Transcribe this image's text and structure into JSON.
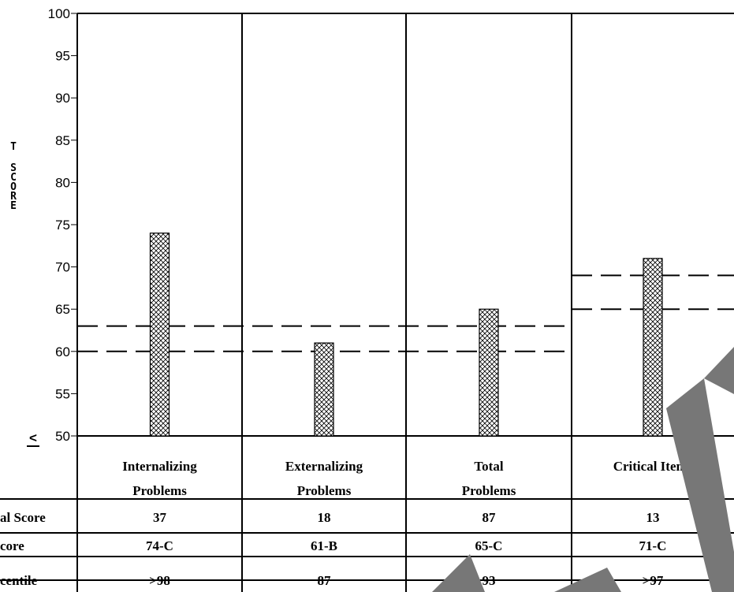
{
  "chart_data": {
    "type": "bar",
    "ylabel": "T SCORE",
    "ylim": [
      50,
      100
    ],
    "yticks": [
      {
        "value": 100,
        "label": "100"
      },
      {
        "value": 95,
        "label": "95"
      },
      {
        "value": 90,
        "label": "90"
      },
      {
        "value": 85,
        "label": "85"
      },
      {
        "value": 80,
        "label": "80"
      },
      {
        "value": 75,
        "label": "75"
      },
      {
        "value": 70,
        "label": "70"
      },
      {
        "value": 65,
        "label": "65"
      },
      {
        "value": 60,
        "label": "60"
      },
      {
        "value": 55,
        "label": "55"
      },
      {
        "value": 50,
        "label": "50"
      }
    ],
    "ymin_marker": "<",
    "categories": [
      {
        "line1": "Internalizing",
        "line2": "Problems"
      },
      {
        "line1": "Externalizing",
        "line2": "Problems"
      },
      {
        "line1": "Total",
        "line2": "Problems"
      },
      {
        "line1": "Critical Items",
        "line2": ""
      }
    ],
    "values": [
      74,
      61,
      65,
      71
    ],
    "reference_lines": [
      {
        "category_range": [
          0,
          2
        ],
        "values": [
          60,
          63
        ]
      },
      {
        "category_range": [
          3,
          3
        ],
        "values": [
          65,
          69
        ]
      }
    ],
    "bar_fill": "crosshatch",
    "grid": false,
    "table": {
      "row_labels": [
        "al Score",
        "core",
        "centile"
      ],
      "rows": [
        [
          "37",
          "18",
          "87",
          "13"
        ],
        [
          "74-C",
          "61-B",
          "65-C",
          "71-C"
        ],
        [
          ">98",
          "87",
          "93",
          ">97"
        ]
      ]
    },
    "colors": {
      "bar_stroke": "#000000",
      "watermark": "#777777"
    }
  }
}
